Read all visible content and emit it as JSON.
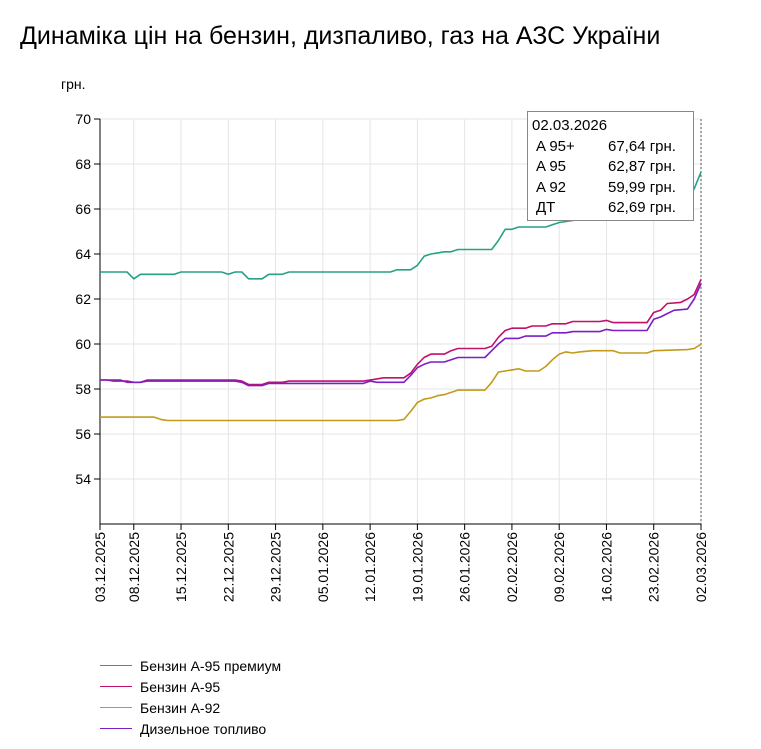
{
  "title": "Динаміка цін на бензин, дизпаливо, газ на АЗС України",
  "colors": {
    "a95plus": "#26a186",
    "a95": "#c0106a",
    "a92": "#c29b1b",
    "dt": "#7b1fc4",
    "axis": "#000000",
    "grid": "#e5e5e5"
  },
  "tooltip": {
    "date": "02.03.2026",
    "rows": [
      {
        "label": "A 95+",
        "value": "67,64 грн."
      },
      {
        "label": "A 95",
        "value": "62,87 грн."
      },
      {
        "label": "A 92",
        "value": "59,99 грн."
      },
      {
        "label": "ДТ",
        "value": "62,69 грн."
      }
    ]
  },
  "chart_data": {
    "type": "line",
    "ylabel": "грн.",
    "ylim": [
      52,
      70
    ],
    "yticks": [
      54,
      56,
      58,
      60,
      62,
      64,
      66,
      68,
      70
    ],
    "xlim": [
      "2025-12-03",
      "2026-03-02"
    ],
    "xticks": [
      "03.12.2025",
      "08.12.2025",
      "15.12.2025",
      "22.12.2025",
      "29.12.2025",
      "05.01.2026",
      "12.01.2026",
      "19.01.2026",
      "26.01.2026",
      "02.02.2026",
      "09.02.2026",
      "16.02.2026",
      "23.02.2026",
      "02.03.2026"
    ],
    "grid": true,
    "legend_position": "bottom",
    "series": [
      {
        "name": "Бензин А-95 премиум",
        "color_key": "a95plus",
        "points": [
          [
            "2025-12-03",
            63.2
          ],
          [
            "2025-12-07",
            63.2
          ],
          [
            "2025-12-08",
            62.9
          ],
          [
            "2025-12-09",
            63.1
          ],
          [
            "2025-12-14",
            63.1
          ],
          [
            "2025-12-15",
            63.2
          ],
          [
            "2025-12-21",
            63.2
          ],
          [
            "2025-12-22",
            63.1
          ],
          [
            "2025-12-23",
            63.2
          ],
          [
            "2025-12-24",
            63.2
          ],
          [
            "2025-12-25",
            62.9
          ],
          [
            "2025-12-27",
            62.9
          ],
          [
            "2025-12-28",
            63.1
          ],
          [
            "2025-12-30",
            63.1
          ],
          [
            "2025-12-31",
            63.2
          ],
          [
            "2026-01-15",
            63.2
          ],
          [
            "2026-01-16",
            63.3
          ],
          [
            "2026-01-18",
            63.3
          ],
          [
            "2026-01-19",
            63.5
          ],
          [
            "2026-01-20",
            63.9
          ],
          [
            "2026-01-21",
            64.0
          ],
          [
            "2026-01-23",
            64.1
          ],
          [
            "2026-01-24",
            64.1
          ],
          [
            "2026-01-25",
            64.2
          ],
          [
            "2026-01-30",
            64.2
          ],
          [
            "2026-01-31",
            64.6
          ],
          [
            "2026-02-01",
            65.1
          ],
          [
            "2026-02-02",
            65.1
          ],
          [
            "2026-02-03",
            65.2
          ],
          [
            "2026-02-07",
            65.2
          ],
          [
            "2026-02-08",
            65.3
          ],
          [
            "2026-02-09",
            65.4
          ],
          [
            "2026-02-27",
            66.2
          ],
          [
            "2026-02-28",
            66.4
          ],
          [
            "2026-03-01",
            66.9
          ],
          [
            "2026-03-02",
            67.64
          ]
        ]
      },
      {
        "name": "Бензин А-95",
        "color_key": "a95",
        "points": [
          [
            "2025-12-03",
            58.4
          ],
          [
            "2025-12-04",
            58.4
          ],
          [
            "2025-12-05",
            58.35
          ],
          [
            "2025-12-07",
            58.35
          ],
          [
            "2025-12-08",
            58.3
          ],
          [
            "2025-12-09",
            58.3
          ],
          [
            "2025-12-10",
            58.4
          ],
          [
            "2025-12-23",
            58.4
          ],
          [
            "2025-12-24",
            58.35
          ],
          [
            "2025-12-25",
            58.2
          ],
          [
            "2025-12-27",
            58.2
          ],
          [
            "2025-12-28",
            58.3
          ],
          [
            "2025-12-30",
            58.3
          ],
          [
            "2025-12-31",
            58.35
          ],
          [
            "2026-01-11",
            58.35
          ],
          [
            "2026-01-12",
            58.4
          ],
          [
            "2026-01-13",
            58.45
          ],
          [
            "2026-01-14",
            58.5
          ],
          [
            "2026-01-17",
            58.5
          ],
          [
            "2026-01-18",
            58.7
          ],
          [
            "2026-01-19",
            59.1
          ],
          [
            "2026-01-20",
            59.4
          ],
          [
            "2026-01-21",
            59.55
          ],
          [
            "2026-01-23",
            59.55
          ],
          [
            "2026-01-24",
            59.7
          ],
          [
            "2026-01-25",
            59.8
          ],
          [
            "2026-01-29",
            59.8
          ],
          [
            "2026-01-30",
            59.9
          ],
          [
            "2026-01-31",
            60.3
          ],
          [
            "2026-02-01",
            60.6
          ],
          [
            "2026-02-02",
            60.7
          ],
          [
            "2026-02-04",
            60.7
          ],
          [
            "2026-02-05",
            60.8
          ],
          [
            "2026-02-07",
            60.8
          ],
          [
            "2026-02-08",
            60.9
          ],
          [
            "2026-02-10",
            60.9
          ],
          [
            "2026-02-11",
            61.0
          ],
          [
            "2026-02-15",
            61.0
          ],
          [
            "2026-02-16",
            61.05
          ],
          [
            "2026-02-17",
            60.95
          ],
          [
            "2026-02-22",
            60.95
          ],
          [
            "2026-02-23",
            61.4
          ],
          [
            "2026-02-24",
            61.5
          ],
          [
            "2026-02-25",
            61.8
          ],
          [
            "2026-02-27",
            61.85
          ],
          [
            "2026-02-28",
            62.0
          ],
          [
            "2026-03-01",
            62.2
          ],
          [
            "2026-03-02",
            62.87
          ]
        ]
      },
      {
        "name": "Бензин А-92",
        "color_key": "a92",
        "points": [
          [
            "2025-12-03",
            56.75
          ],
          [
            "2025-12-11",
            56.75
          ],
          [
            "2025-12-12",
            56.65
          ],
          [
            "2025-12-13",
            56.6
          ],
          [
            "2026-01-16",
            56.6
          ],
          [
            "2026-01-17",
            56.65
          ],
          [
            "2026-01-18",
            57.0
          ],
          [
            "2026-01-19",
            57.4
          ],
          [
            "2026-01-20",
            57.55
          ],
          [
            "2026-01-21",
            57.6
          ],
          [
            "2026-01-22",
            57.7
          ],
          [
            "2026-01-23",
            57.75
          ],
          [
            "2026-01-24",
            57.85
          ],
          [
            "2026-01-25",
            57.95
          ],
          [
            "2026-01-29",
            57.95
          ],
          [
            "2026-01-30",
            58.3
          ],
          [
            "2026-01-31",
            58.75
          ],
          [
            "2026-02-01",
            58.8
          ],
          [
            "2026-02-02",
            58.85
          ],
          [
            "2026-02-03",
            58.9
          ],
          [
            "2026-02-04",
            58.8
          ],
          [
            "2026-02-06",
            58.8
          ],
          [
            "2026-02-07",
            59.0
          ],
          [
            "2026-02-08",
            59.3
          ],
          [
            "2026-02-09",
            59.55
          ],
          [
            "2026-02-10",
            59.65
          ],
          [
            "2026-02-11",
            59.6
          ],
          [
            "2026-02-12",
            59.65
          ],
          [
            "2026-02-14",
            59.7
          ],
          [
            "2026-02-17",
            59.7
          ],
          [
            "2026-02-18",
            59.6
          ],
          [
            "2026-02-22",
            59.6
          ],
          [
            "2026-02-23",
            59.7
          ],
          [
            "2026-02-28",
            59.75
          ],
          [
            "2026-03-01",
            59.8
          ],
          [
            "2026-03-02",
            59.99
          ]
        ]
      },
      {
        "name": "Дизельное топливо",
        "color_key": "dt",
        "points": [
          [
            "2025-12-03",
            58.4
          ],
          [
            "2025-12-06",
            58.4
          ],
          [
            "2025-12-07",
            58.3
          ],
          [
            "2025-12-09",
            58.3
          ],
          [
            "2025-12-10",
            58.35
          ],
          [
            "2025-12-23",
            58.35
          ],
          [
            "2025-12-24",
            58.3
          ],
          [
            "2025-12-25",
            58.15
          ],
          [
            "2025-12-27",
            58.15
          ],
          [
            "2025-12-28",
            58.25
          ],
          [
            "2026-01-11",
            58.25
          ],
          [
            "2026-01-12",
            58.35
          ],
          [
            "2026-01-13",
            58.3
          ],
          [
            "2026-01-17",
            58.3
          ],
          [
            "2026-01-18",
            58.6
          ],
          [
            "2026-01-19",
            58.95
          ],
          [
            "2026-01-20",
            59.1
          ],
          [
            "2026-01-21",
            59.2
          ],
          [
            "2026-01-23",
            59.2
          ],
          [
            "2026-01-24",
            59.3
          ],
          [
            "2026-01-25",
            59.4
          ],
          [
            "2026-01-29",
            59.4
          ],
          [
            "2026-01-30",
            59.7
          ],
          [
            "2026-01-31",
            60.0
          ],
          [
            "2026-02-01",
            60.25
          ],
          [
            "2026-02-03",
            60.25
          ],
          [
            "2026-02-04",
            60.35
          ],
          [
            "2026-02-07",
            60.35
          ],
          [
            "2026-02-08",
            60.5
          ],
          [
            "2026-02-10",
            60.5
          ],
          [
            "2026-02-11",
            60.55
          ],
          [
            "2026-02-15",
            60.55
          ],
          [
            "2026-02-16",
            60.65
          ],
          [
            "2026-02-17",
            60.6
          ],
          [
            "2026-02-22",
            60.6
          ],
          [
            "2026-02-23",
            61.1
          ],
          [
            "2026-02-24",
            61.2
          ],
          [
            "2026-02-25",
            61.35
          ],
          [
            "2026-02-26",
            61.5
          ],
          [
            "2026-02-28",
            61.55
          ],
          [
            "2026-03-01",
            62.0
          ],
          [
            "2026-03-02",
            62.69
          ]
        ]
      }
    ]
  }
}
